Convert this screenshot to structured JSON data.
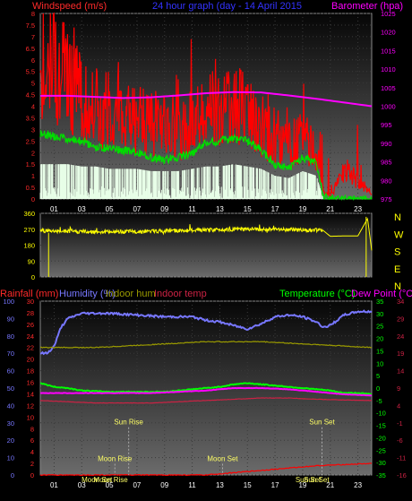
{
  "header": {
    "left_label": "Windspeed (m/s)",
    "center_label": "24 hour graph (day - 14 April 2015",
    "right_label": "Barometer (hpa)"
  },
  "bottom_header": {
    "rainfall": "Rainfall (mm)",
    "humidity": "Humidity (%)",
    "indoor_hum": "Indoor hum",
    "indoor_temp": "Indoor temp",
    "temperature": "Temperature (°C)",
    "dew_point": "Dew Point (°C)"
  },
  "colors": {
    "wind_axis": "#ff2a2a",
    "baro_axis": "#ff00ff",
    "title": "#3333ff",
    "humidity": "#7777ff",
    "indoor_hum": "#9a9a00",
    "indoor_temp": "#cc2244",
    "temperature": "#00ff00",
    "dew_point": "#ff00ff",
    "direction": "#ffff00",
    "gust": "#ff0000",
    "avg_wind": "#00dd00",
    "calm": "#e8ffe8",
    "annotation": "#ffff66"
  },
  "chart_data": [
    {
      "type": "line",
      "panel": "wind-barometer",
      "x_ticks": [
        "01",
        "03",
        "05",
        "07",
        "09",
        "11",
        "13",
        "15",
        "17",
        "19",
        "21",
        "23"
      ],
      "x_range_hours": [
        0,
        24
      ],
      "y_left": {
        "label": "Windspeed (m/s)",
        "range": [
          0,
          8
        ],
        "ticks": [
          "0",
          "0.5",
          "1",
          "1.5",
          "2",
          "2.5",
          "3",
          "3.5",
          "4",
          "4.5",
          "5",
          "5.5",
          "6",
          "6.5",
          "7",
          "7.5",
          "8"
        ]
      },
      "y_right": {
        "label": "Barometer (hpa)",
        "range": [
          975,
          1025
        ],
        "ticks": [
          "975",
          "980",
          "985",
          "990",
          "995",
          "1000",
          "1005",
          "1010",
          "1015",
          "1020",
          "1025"
        ]
      },
      "series": [
        {
          "name": "gust",
          "color": "#ff0000",
          "hours": [
            0,
            1,
            2,
            3,
            4,
            5,
            6,
            7,
            8,
            9,
            10,
            11,
            12,
            13,
            14,
            15,
            16,
            17,
            18,
            19,
            20,
            20.5,
            21,
            22,
            23,
            24
          ],
          "values": [
            5.5,
            6.0,
            5.0,
            4.5,
            4.0,
            3.8,
            3.6,
            3.4,
            3.3,
            3.1,
            2.9,
            3.2,
            3.8,
            4.0,
            4.2,
            3.8,
            3.2,
            2.6,
            2.2,
            2.6,
            2.0,
            0.3,
            0.1,
            1.2,
            0.8,
            0.3
          ]
        },
        {
          "name": "average",
          "color": "#00dd00",
          "hours": [
            0,
            1,
            2,
            3,
            4,
            5,
            6,
            7,
            8,
            9,
            10,
            11,
            12,
            13,
            14,
            15,
            16,
            17,
            18,
            19,
            20,
            20.5,
            21,
            22,
            23,
            24
          ],
          "values": [
            2.8,
            2.7,
            2.6,
            2.5,
            2.2,
            2.2,
            2.1,
            2.0,
            1.8,
            1.7,
            1.8,
            2.0,
            2.4,
            2.5,
            2.6,
            2.5,
            2.1,
            1.5,
            1.3,
            1.8,
            1.6,
            0.1,
            0,
            0,
            0,
            0
          ]
        },
        {
          "name": "calm",
          "color": "#e8ffe8",
          "hours": [
            0,
            1,
            2,
            3,
            4,
            5,
            6,
            7,
            8,
            9,
            10,
            11,
            12,
            13,
            14,
            15,
            16,
            17,
            18,
            19,
            20,
            20.5,
            21,
            22,
            23,
            24
          ],
          "values": [
            1.5,
            1.5,
            1.5,
            1.4,
            1.4,
            1.3,
            1.3,
            1.3,
            1.2,
            1.2,
            1.2,
            1.3,
            1.4,
            1.4,
            1.5,
            1.4,
            1.3,
            1.0,
            0.9,
            1.2,
            1.0,
            0,
            0,
            0,
            0,
            0
          ]
        },
        {
          "name": "barometer",
          "color": "#ff00ff",
          "hours": [
            0,
            2,
            4,
            6,
            8,
            10,
            12,
            14,
            16,
            18,
            20,
            22,
            24
          ],
          "values": [
            1002.8,
            1002.8,
            1002.5,
            1002.2,
            1002.4,
            1002.9,
            1003.5,
            1003.8,
            1003.7,
            1002.9,
            1002.0,
            1001.0,
            1000.0
          ]
        }
      ]
    },
    {
      "type": "line",
      "panel": "wind-direction",
      "x_range_hours": [
        0,
        24
      ],
      "y_left": {
        "range": [
          0,
          360
        ],
        "ticks": [
          "0",
          "90",
          "180",
          "270",
          "360"
        ]
      },
      "y_right_labels": [
        "N",
        "W",
        "S",
        "E",
        "N"
      ],
      "series": [
        {
          "name": "direction",
          "color": "#ffff00",
          "hours": [
            0,
            2,
            4,
            6,
            8,
            10,
            12,
            14,
            16,
            18,
            20,
            20.5,
            21,
            22,
            23,
            23.7,
            24
          ],
          "values": [
            262,
            258,
            255,
            256,
            258,
            262,
            265,
            270,
            270,
            268,
            265,
            262,
            230,
            232,
            232,
            330,
            150
          ]
        }
      ]
    },
    {
      "type": "line",
      "panel": "temp-humidity",
      "x_ticks": [
        "01",
        "03",
        "05",
        "07",
        "09",
        "11",
        "13",
        "15",
        "17",
        "19",
        "21",
        "23"
      ],
      "x_range_hours": [
        0,
        24
      ],
      "y_left_rain": {
        "label": "Rainfall (mm)",
        "range": [
          0,
          30
        ],
        "ticks": [
          "0",
          "2",
          "4",
          "6",
          "8",
          "10",
          "12",
          "14",
          "16",
          "18",
          "20",
          "22",
          "24",
          "26",
          "28",
          "30"
        ]
      },
      "y_left_humidity": {
        "label": "Humidity (%)",
        "range": [
          0,
          100
        ],
        "ticks": [
          "0",
          "10",
          "20",
          "30",
          "40",
          "50",
          "60",
          "70",
          "80",
          "90",
          "100"
        ]
      },
      "y_right_temp": {
        "label": "Temperature (°C)",
        "range": [
          -35,
          35
        ],
        "ticks": [
          "-35",
          "-30",
          "-25",
          "-20",
          "-15",
          "-10",
          "-5",
          "0",
          "5",
          "10",
          "15",
          "20",
          "25",
          "30",
          "35"
        ]
      },
      "y_right_indoor": {
        "range": [
          -16,
          34
        ],
        "ticks": [
          "-16",
          "-11",
          "-6",
          "-1",
          "4",
          "9",
          "14",
          "19",
          "24",
          "29",
          "34"
        ]
      },
      "annotations": [
        {
          "label": "Sun Rise",
          "hour": 6.4,
          "value_pct": 29
        },
        {
          "label": "Moon Rise",
          "hour": 5.4,
          "value_pct": 8
        },
        {
          "label": "Moon Set",
          "hour": 13.2,
          "value_pct": 8
        },
        {
          "label": "Sun Set",
          "hour": 20.4,
          "value_pct": 29
        },
        {
          "label": "Moon Set",
          "hour": 4.1,
          "value_pct": -4
        },
        {
          "label": "Moon Rise",
          "hour": 5.1,
          "value_pct": -4
        },
        {
          "label": "Sun Set",
          "hour": 19.4,
          "value_pct": -4
        },
        {
          "label": "Sun Set",
          "hour": 20.0,
          "value_pct": -4
        }
      ],
      "series": [
        {
          "name": "humidity",
          "color": "#7777ff",
          "hours": [
            0,
            0.5,
            1,
            1.5,
            2,
            3,
            5,
            7,
            9,
            11,
            12,
            13,
            14,
            15,
            16,
            17,
            18,
            19,
            20,
            20.5,
            21,
            22,
            23,
            24
          ],
          "values": [
            70,
            70,
            74,
            85,
            90,
            93,
            93,
            92,
            91,
            91,
            89,
            88,
            86,
            84,
            87,
            91,
            92,
            91,
            88,
            85,
            86,
            92,
            94,
            94
          ]
        },
        {
          "name": "temperature",
          "color": "#00ff00",
          "hours": [
            0,
            1,
            2,
            3,
            5,
            7,
            9,
            11,
            13,
            14,
            15,
            16,
            17,
            18,
            19,
            20,
            21,
            22,
            23,
            24
          ],
          "values": [
            2,
            0.5,
            0,
            -1,
            -1.5,
            -1.5,
            -1.5,
            -0.5,
            0.5,
            1.5,
            2,
            1.5,
            1,
            0.5,
            0,
            -0.5,
            -1,
            -2,
            -2,
            -2.5
          ]
        },
        {
          "name": "dew_point",
          "color": "#ff00ff",
          "hours": [
            0,
            2,
            4,
            6,
            8,
            10,
            12,
            14,
            16,
            18,
            20,
            22,
            24
          ],
          "values": [
            -2,
            -2,
            -2,
            -2,
            -2,
            -1.5,
            -1,
            0,
            0,
            -0.5,
            -1.5,
            -2.5,
            -3
          ]
        },
        {
          "name": "indoor_temp",
          "color": "#cc2244",
          "hours": [
            0,
            2,
            4,
            6,
            8,
            10,
            12,
            14,
            16,
            18,
            20,
            22,
            24
          ],
          "values": [
            -5,
            -5.5,
            -6,
            -6,
            -6,
            -5.5,
            -5,
            -4.5,
            -4,
            -4,
            -4.5,
            -4.8,
            -5
          ]
        },
        {
          "name": "indoor_hum",
          "color": "#9a9a00",
          "hours": [
            0,
            4,
            8,
            12,
            16,
            20,
            24
          ],
          "values": [
            22,
            22,
            22.5,
            23,
            23,
            22.5,
            22
          ]
        },
        {
          "name": "rainfall",
          "color": "#ff0000",
          "hours": [
            0,
            4,
            8,
            12,
            14,
            16,
            18,
            20,
            22,
            24
          ],
          "values": [
            0,
            0,
            0,
            0,
            0.4,
            0.8,
            1.2,
            1.6,
            1.8,
            2.0
          ]
        }
      ]
    }
  ]
}
